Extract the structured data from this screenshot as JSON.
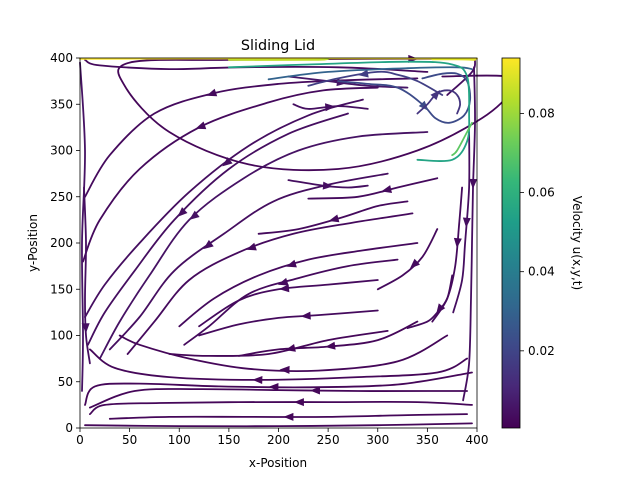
{
  "chart_data": {
    "type": "streamplot",
    "title": "Sliding Lid",
    "xlabel": "x-Position",
    "ylabel": "y-Position",
    "xlim": [
      0,
      400
    ],
    "ylim": [
      0,
      400
    ],
    "xticks": [
      0,
      50,
      100,
      150,
      200,
      250,
      300,
      350,
      400
    ],
    "yticks": [
      0,
      50,
      100,
      150,
      200,
      250,
      300,
      350,
      400
    ],
    "grid": false,
    "colorbar": {
      "label": "Velocity u(x,y,t)",
      "range": [
        0.0005,
        0.094
      ],
      "ticks": [
        0.02,
        0.04,
        0.06,
        0.08
      ],
      "colormap": [
        "#440154",
        "#482878",
        "#3e4989",
        "#31688e",
        "#26828e",
        "#1f9e89",
        "#35b779",
        "#6ece58",
        "#b5de2b",
        "#fde725"
      ]
    },
    "vortex": {
      "direction": "counter-clockwise",
      "lid_moving": "right"
    },
    "streamlines": [
      {
        "v": 0.002,
        "arrow_at": 0.93,
        "points": [
          [
            365,
            380
          ],
          [
            430,
            380
          ],
          [
            435,
            365
          ],
          [
            405,
            335
          ],
          [
            340,
            300
          ],
          [
            260,
            280
          ],
          [
            170,
            285
          ],
          [
            90,
            320
          ],
          [
            45,
            370
          ],
          [
            50,
            395
          ],
          [
            150,
            398
          ],
          [
            300,
            399
          ],
          [
            398,
            399
          ]
        ]
      },
      {
        "v": 0.003,
        "points": [
          [
            350,
            385
          ],
          [
            260,
            390
          ],
          [
            160,
            390
          ],
          [
            90,
            388
          ],
          [
            20,
            392
          ],
          [
            5,
            398
          ]
        ]
      },
      {
        "v": 0.003,
        "arrow_at": 0.55,
        "points": [
          [
            340,
            378
          ],
          [
            270,
            376
          ],
          [
            200,
            372
          ],
          [
            135,
            362
          ],
          [
            75,
            340
          ],
          [
            30,
            295
          ],
          [
            5,
            250
          ]
        ]
      },
      {
        "v": 0.003,
        "arrow_at": 0.5,
        "points": [
          [
            300,
            368
          ],
          [
            245,
            365
          ],
          [
            190,
            352
          ],
          [
            120,
            325
          ],
          [
            60,
            280
          ],
          [
            20,
            225
          ],
          [
            3,
            180
          ]
        ]
      },
      {
        "v": 0.004,
        "arrow_at": 0.42,
        "points": [
          [
            285,
            355
          ],
          [
            230,
            338
          ],
          [
            170,
            305
          ],
          [
            110,
            255
          ],
          [
            60,
            200
          ],
          [
            25,
            155
          ],
          [
            5,
            120
          ]
        ]
      },
      {
        "v": 0.004,
        "arrow_at": 0.55,
        "points": [
          [
            270,
            340
          ],
          [
            210,
            318
          ],
          [
            150,
            280
          ],
          [
            95,
            225
          ],
          [
            55,
            170
          ],
          [
            25,
            125
          ],
          [
            8,
            90
          ]
        ]
      },
      {
        "v": 0.005,
        "arrow_at": 0.6,
        "points": [
          [
            350,
            320
          ],
          [
            280,
            315
          ],
          [
            220,
            300
          ],
          [
            165,
            270
          ],
          [
            110,
            225
          ],
          [
            70,
            165
          ],
          [
            40,
            115
          ],
          [
            20,
            75
          ]
        ]
      },
      {
        "v": 0.004,
        "arrow_at": 0.58,
        "points": [
          [
            310,
            275
          ],
          [
            250,
            263
          ],
          [
            195,
            245
          ],
          [
            145,
            210
          ],
          [
            95,
            170
          ],
          [
            60,
            120
          ],
          [
            30,
            85
          ]
        ]
      },
      {
        "v": 0.003,
        "arrow_at": 0.5,
        "points": [
          [
            335,
            232
          ],
          [
            275,
            222
          ],
          [
            215,
            210
          ],
          [
            160,
            190
          ],
          [
            110,
            160
          ],
          [
            75,
            115
          ],
          [
            48,
            80
          ]
        ]
      },
      {
        "v": 0.003,
        "arrow_at": 0.5,
        "points": [
          [
            340,
            200
          ],
          [
            285,
            192
          ],
          [
            230,
            182
          ],
          [
            180,
            165
          ],
          [
            135,
            140
          ],
          [
            100,
            110
          ]
        ]
      },
      {
        "v": 0.003,
        "arrow_at": 0.5,
        "points": [
          [
            320,
            182
          ],
          [
            270,
            175
          ],
          [
            220,
            162
          ],
          [
            170,
            145
          ],
          [
            130,
            110
          ],
          [
            105,
            90
          ]
        ]
      },
      {
        "v": 0.003,
        "arrow_at": 0.5,
        "points": [
          [
            300,
            160
          ],
          [
            250,
            155
          ],
          [
            200,
            150
          ],
          [
            160,
            138
          ],
          [
            120,
            110
          ]
        ]
      },
      {
        "v": 0.003,
        "arrow_at": 0.4,
        "points": [
          [
            300,
            127
          ],
          [
            240,
            122
          ],
          [
            200,
            119
          ],
          [
            160,
            112
          ],
          [
            120,
            100
          ]
        ]
      },
      {
        "v": 0.002,
        "arrow_at": 0.45,
        "points": [
          [
            310,
            105
          ],
          [
            250,
            95
          ],
          [
            190,
            80
          ],
          [
            130,
            78
          ],
          [
            90,
            80
          ]
        ]
      },
      {
        "v": 0.002,
        "arrow_at": 0.5,
        "points": [
          [
            340,
            115
          ],
          [
            300,
            95
          ],
          [
            250,
            88
          ],
          [
            200,
            85
          ],
          [
            160,
            78
          ]
        ]
      },
      {
        "v": 0.002,
        "arrow_at": 0.5,
        "points": [
          [
            370,
            100
          ],
          [
            320,
            72
          ],
          [
            240,
            62
          ],
          [
            170,
            64
          ],
          [
            110,
            75
          ],
          [
            60,
            90
          ],
          [
            40,
            100
          ]
        ]
      },
      {
        "v": 0.002,
        "arrow_at": 0.55,
        "points": [
          [
            390,
            75
          ],
          [
            360,
            60
          ],
          [
            280,
            55
          ],
          [
            180,
            52
          ],
          [
            90,
            55
          ],
          [
            35,
            65
          ],
          [
            10,
            85
          ]
        ]
      },
      {
        "v": 0.002,
        "arrow_at": 0.5,
        "points": [
          [
            395,
            60
          ],
          [
            320,
            47
          ],
          [
            230,
            44
          ],
          [
            140,
            45
          ],
          [
            60,
            48
          ],
          [
            15,
            45
          ],
          [
            5,
            25
          ]
        ]
      },
      {
        "v": 0.002,
        "arrow_at": 0.4,
        "points": [
          [
            390,
            40
          ],
          [
            350,
            40
          ],
          [
            280,
            40
          ],
          [
            200,
            41
          ],
          [
            120,
            42
          ],
          [
            55,
            40
          ],
          [
            10,
            22
          ]
        ]
      },
      {
        "v": 0.002,
        "arrow_at": 0.45,
        "points": [
          [
            395,
            25
          ],
          [
            340,
            28
          ],
          [
            250,
            28
          ],
          [
            160,
            28
          ],
          [
            80,
            27
          ],
          [
            25,
            25
          ],
          [
            10,
            15
          ]
        ]
      },
      {
        "v": 0.002,
        "arrow_at": 0.5,
        "points": [
          [
            390,
            15
          ],
          [
            330,
            14
          ],
          [
            250,
            12
          ],
          [
            170,
            12
          ],
          [
            90,
            12
          ],
          [
            30,
            10
          ]
        ]
      },
      {
        "v": 0.002,
        "points": [
          [
            395,
            5
          ],
          [
            300,
            3
          ],
          [
            200,
            2
          ],
          [
            100,
            2
          ],
          [
            5,
            3
          ]
        ]
      },
      {
        "v": 0.005,
        "points": [
          [
            0,
            395
          ],
          [
            5,
            300
          ],
          [
            2,
            200
          ],
          [
            3,
            100
          ],
          [
            2,
            40
          ]
        ]
      },
      {
        "v": 0.004,
        "arrow_at": 0.8,
        "points": [
          [
            4,
            260
          ],
          [
            6,
            200
          ],
          [
            5,
            140
          ],
          [
            6,
            100
          ],
          [
            10,
            70
          ]
        ]
      },
      {
        "v": 0.004,
        "arrow_at": 0.35,
        "points": [
          [
            397,
            390
          ],
          [
            398,
            330
          ],
          [
            396,
            260
          ],
          [
            395,
            200
          ],
          [
            394,
            140
          ],
          [
            392,
            70
          ],
          [
            386,
            30
          ]
        ]
      },
      {
        "v": 0.004,
        "arrow_at": 0.5,
        "points": [
          [
            392,
            320
          ],
          [
            392,
            260
          ],
          [
            388,
            200
          ],
          [
            385,
            160
          ],
          [
            376,
            125
          ]
        ]
      },
      {
        "v": 0.003,
        "arrow_at": 0.4,
        "points": [
          [
            385,
            260
          ],
          [
            382,
            220
          ],
          [
            378,
            175
          ],
          [
            370,
            140
          ],
          [
            355,
            115
          ]
        ]
      },
      {
        "v": 0.003,
        "arrow_at": 0.5,
        "points": [
          [
            375,
            165
          ],
          [
            370,
            140
          ],
          [
            360,
            125
          ],
          [
            350,
            115
          ],
          [
            330,
            108
          ]
        ]
      },
      {
        "v": 0.003,
        "arrow_at": 0.5,
        "points": [
          [
            360,
            215
          ],
          [
            345,
            185
          ],
          [
            325,
            165
          ],
          [
            300,
            150
          ]
        ]
      },
      {
        "v": 0.003,
        "arrow_at": 0.5,
        "points": [
          [
            330,
            245
          ],
          [
            300,
            240
          ],
          [
            265,
            228
          ],
          [
            220,
            215
          ],
          [
            180,
            210
          ]
        ]
      },
      {
        "v": 0.004,
        "arrow_at": 0.5,
        "points": [
          [
            210,
            268
          ],
          [
            245,
            262
          ],
          [
            270,
            260
          ],
          [
            290,
            262
          ]
        ]
      },
      {
        "v": 0.003,
        "arrow_at": 0.4,
        "points": [
          [
            360,
            270
          ],
          [
            320,
            260
          ],
          [
            280,
            250
          ],
          [
            230,
            248
          ]
        ]
      },
      {
        "v": 0.004,
        "arrow_at": 0.5,
        "points": [
          [
            215,
            350
          ],
          [
            230,
            345
          ],
          [
            260,
            348
          ],
          [
            290,
            345
          ]
        ]
      },
      {
        "v": 0.006,
        "arrow_at": 0.45,
        "points": [
          [
            210,
            380
          ],
          [
            250,
            375
          ],
          [
            290,
            370
          ],
          [
            330,
            368
          ]
        ]
      },
      {
        "v": 0.004,
        "points": [
          [
            370,
            360
          ],
          [
            395,
            385
          ],
          [
            398,
            399
          ]
        ]
      },
      {
        "v": 0.018,
        "arrow_at": 0.6,
        "points": [
          [
            365,
            360
          ],
          [
            340,
            375
          ],
          [
            320,
            382
          ],
          [
            300,
            385
          ],
          [
            260,
            378
          ],
          [
            230,
            370
          ]
        ]
      },
      {
        "v": 0.022,
        "arrow_at": 0.42,
        "points": [
          [
            260,
            375
          ],
          [
            290,
            372
          ],
          [
            320,
            368
          ],
          [
            345,
            350
          ],
          [
            358,
            335
          ],
          [
            372,
            330
          ],
          [
            387,
            338
          ],
          [
            393,
            355
          ],
          [
            390,
            375
          ],
          [
            380,
            383
          ],
          [
            365,
            383
          ],
          [
            345,
            378
          ]
        ]
      },
      {
        "v": 0.015,
        "arrow_at": 0.4,
        "points": [
          [
            340,
            340
          ],
          [
            350,
            350
          ],
          [
            360,
            362
          ],
          [
            372,
            365
          ],
          [
            380,
            360
          ],
          [
            383,
            350
          ],
          [
            380,
            340
          ]
        ]
      },
      {
        "v": 0.03,
        "points": [
          [
            190,
            377
          ],
          [
            250,
            385
          ],
          [
            330,
            389
          ],
          [
            380,
            390
          ],
          [
            395,
            388
          ]
        ]
      },
      {
        "v": 0.055,
        "points": [
          [
            150,
            390
          ],
          [
            230,
            393
          ],
          [
            330,
            396
          ],
          [
            375,
            393
          ],
          [
            390,
            380
          ],
          [
            392,
            340
          ],
          [
            390,
            310
          ],
          [
            375,
            290
          ],
          [
            340,
            290
          ]
        ]
      },
      {
        "v": 0.07,
        "points": [
          [
            395,
            330
          ],
          [
            390,
            320
          ],
          [
            380,
            300
          ],
          [
            375,
            295
          ]
        ]
      },
      {
        "v": 0.094,
        "points": [
          [
            0,
            399
          ],
          [
            100,
            399.5
          ],
          [
            200,
            399.6
          ],
          [
            300,
            399.6
          ],
          [
            400,
            399.2
          ]
        ]
      },
      {
        "v": 0.085,
        "points": [
          [
            150,
            398
          ],
          [
            235,
            398
          ],
          [
            250,
            399
          ]
        ]
      },
      {
        "v": 0.09,
        "points": [
          [
            355,
            398.5
          ],
          [
            380,
            398.5
          ],
          [
            398,
            398
          ]
        ]
      }
    ]
  }
}
